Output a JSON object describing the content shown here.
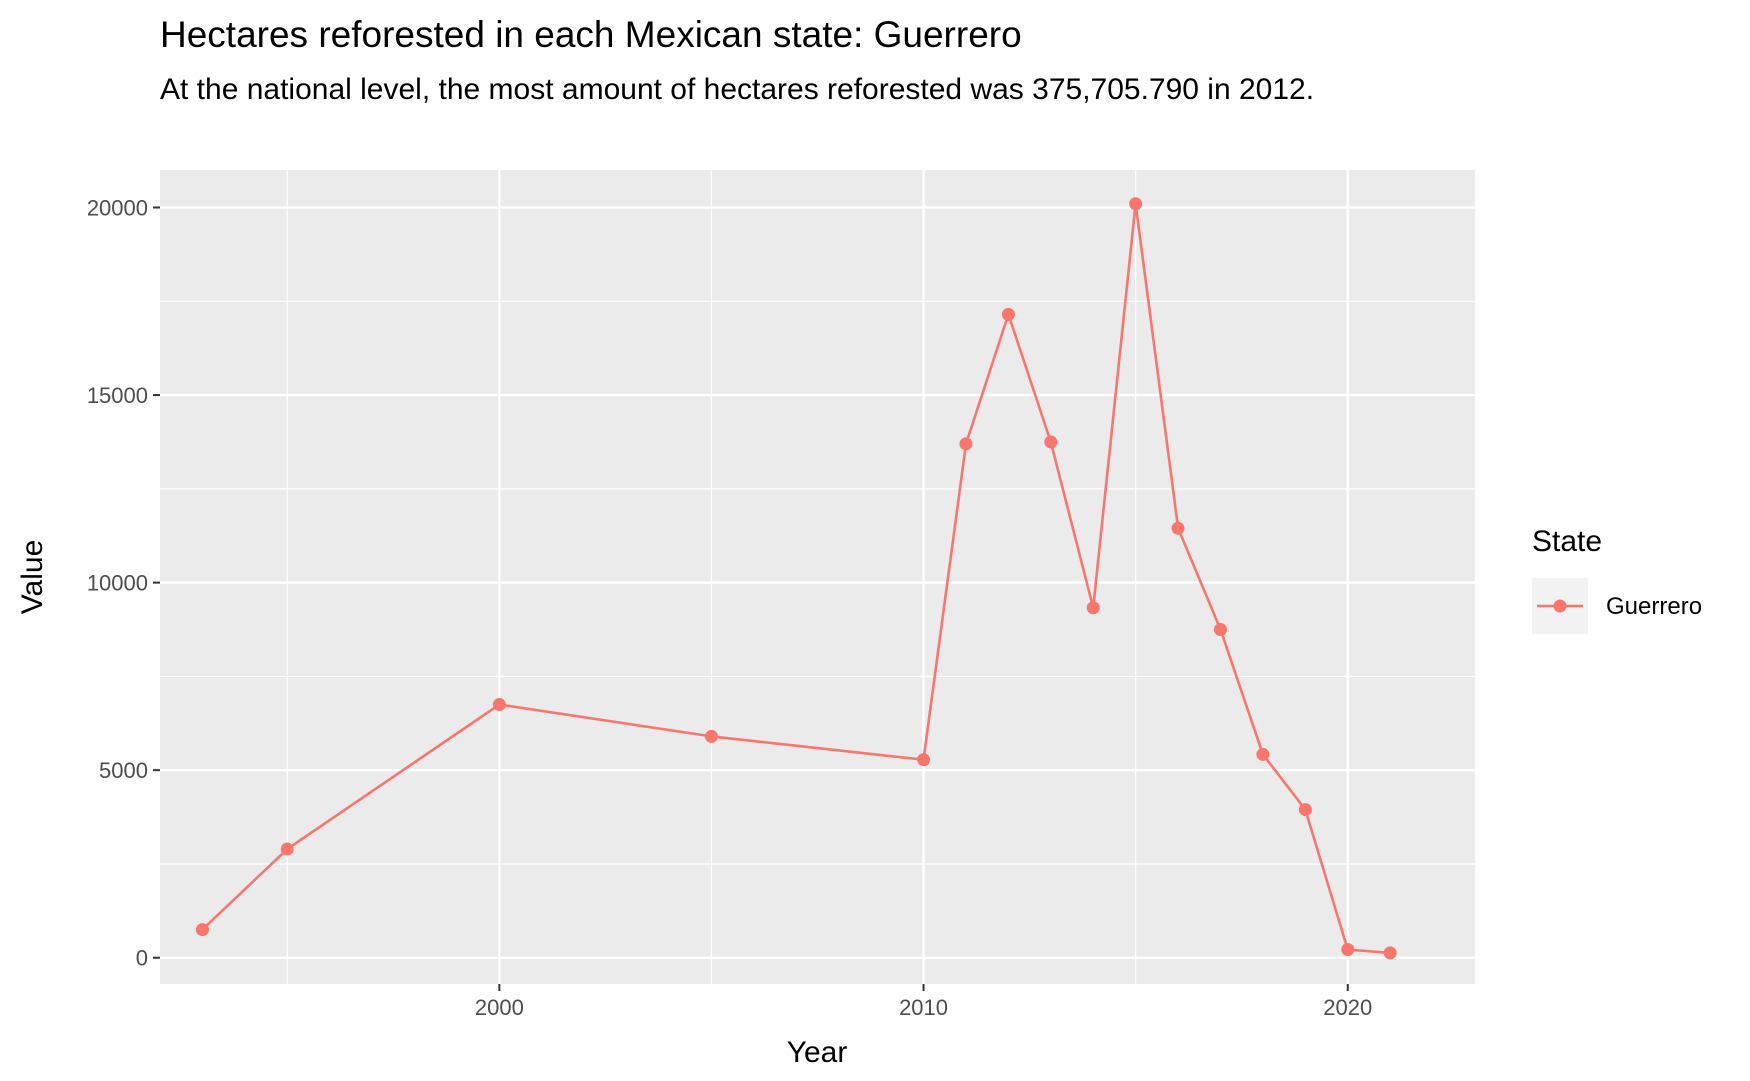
{
  "chart_data": {
    "type": "line",
    "title": "Hectares reforested in each Mexican state: Guerrero",
    "subtitle": "At the national level, the most amount of hectares reforested was 375,705.790 in 2012.",
    "xlabel": "Year",
    "ylabel": "Value",
    "xlim": [
      1992,
      2023
    ],
    "ylim": [
      -700,
      21000
    ],
    "x_ticks": [
      2000,
      2010,
      2020
    ],
    "y_ticks": [
      0,
      5000,
      10000,
      15000,
      20000
    ],
    "grid": true,
    "legend": {
      "title": "State",
      "position": "right"
    },
    "series": [
      {
        "name": "Guerrero",
        "color": "#F8766D",
        "x": [
          1993,
          1995,
          2000,
          2005,
          2010,
          2011,
          2012,
          2013,
          2014,
          2015,
          2016,
          2017,
          2018,
          2019,
          2020,
          2021
        ],
        "y": [
          750,
          2900,
          6750,
          5900,
          5280,
          13700,
          17150,
          13750,
          9330,
          20100,
          11450,
          8750,
          5420,
          3950,
          220,
          130
        ]
      }
    ]
  }
}
